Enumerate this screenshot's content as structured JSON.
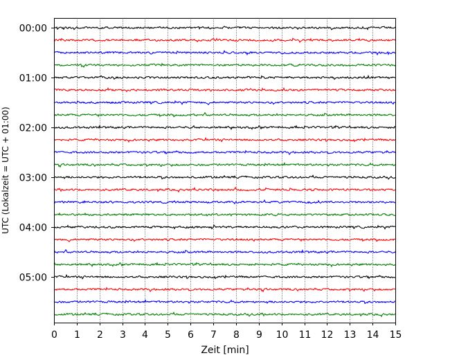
{
  "chart_data": {
    "type": "line",
    "title": "",
    "xlabel": "Zeit  [min]",
    "ylabel": "UTC (Lokalzeit = UTC + 01:00)",
    "xlim": [
      0,
      15
    ],
    "x_ticks": [
      0,
      1,
      2,
      3,
      4,
      5,
      6,
      7,
      8,
      9,
      10,
      11,
      12,
      13,
      14,
      15
    ],
    "x_tick_labels": [
      "0",
      "1",
      "2",
      "3",
      "4",
      "5",
      "6",
      "7",
      "8",
      "9",
      "10",
      "11",
      "12",
      "13",
      "14",
      "15"
    ],
    "y_tick_labels": [
      "00:00",
      "01:00",
      "02:00",
      "03:00",
      "04:00",
      "05:00"
    ],
    "y_tick_hours": [
      0,
      1,
      2,
      3,
      4,
      5
    ],
    "trace_interval_minutes": 15,
    "trace_count": 24,
    "trace_colors": [
      "#000000",
      "#ff0000",
      "#0000ff",
      "#008000"
    ],
    "vertical_grid": "dotted",
    "legend": "none"
  }
}
